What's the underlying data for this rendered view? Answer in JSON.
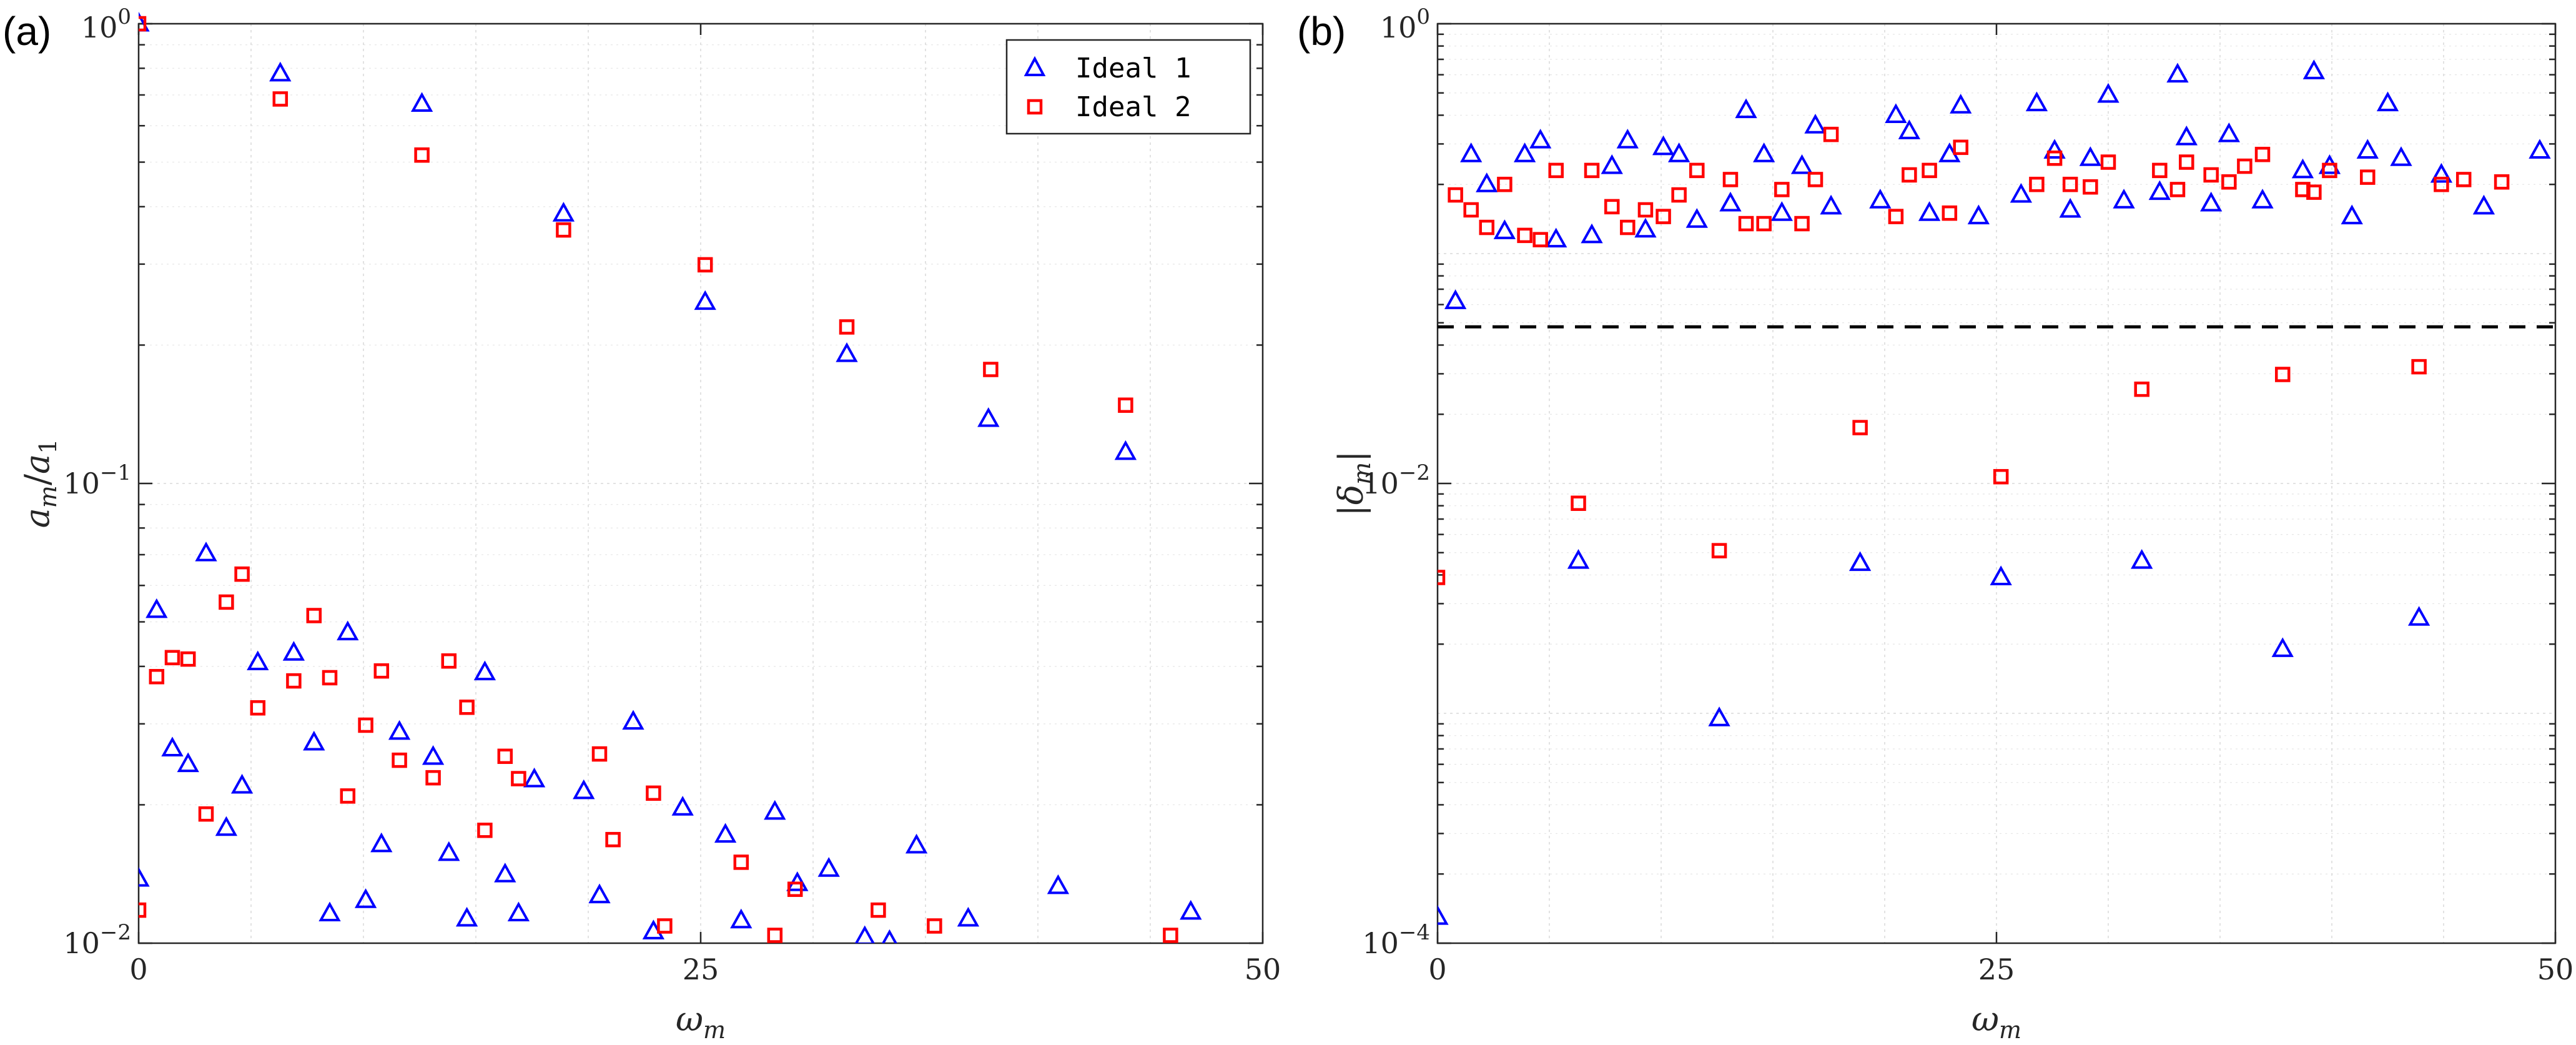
{
  "chart_data": [
    {
      "id": "a",
      "type": "scatter",
      "panel_label": "(a)",
      "xlabel": "ω_m",
      "ylabel": "a_m/a_1",
      "xlim": [
        0,
        50
      ],
      "ylim": [
        0.01,
        1
      ],
      "yscale": "log",
      "x_ticks": [
        0,
        25,
        50
      ],
      "y_ticks": [
        0.01,
        0.1,
        1
      ],
      "y_tick_labels": [
        "10^{-2}",
        "10^{-1}",
        "10^{0}"
      ],
      "legend": {
        "position": "top-right",
        "entries": [
          "Ideal 1",
          "Ideal 2"
        ]
      },
      "series": [
        {
          "name": "Ideal 1",
          "marker": "triangle",
          "color": "#0000ff",
          "points": [
            [
              0,
              1.0
            ],
            [
              0,
              0.0138
            ],
            [
              0.8,
              0.053
            ],
            [
              1.5,
              0.0265
            ],
            [
              2.2,
              0.0245
            ],
            [
              3,
              0.0704
            ],
            [
              3.9,
              0.0178
            ],
            [
              4.6,
              0.022
            ],
            [
              5.3,
              0.0408
            ],
            [
              6.3,
              0.779
            ],
            [
              6.9,
              0.0428
            ],
            [
              7.8,
              0.0273
            ],
            [
              8.5,
              0.0116
            ],
            [
              9.3,
              0.0474
            ],
            [
              10.1,
              0.0124
            ],
            [
              10.8,
              0.0164
            ],
            [
              11.6,
              0.0288
            ],
            [
              12.6,
              0.669
            ],
            [
              13.1,
              0.0254
            ],
            [
              13.8,
              0.0157
            ],
            [
              14.6,
              0.0113
            ],
            [
              15.4,
              0.0388
            ],
            [
              16.3,
              0.0141
            ],
            [
              16.9,
              0.0116
            ],
            [
              17.6,
              0.0227
            ],
            [
              18.9,
              0.386
            ],
            [
              19.8,
              0.0214
            ],
            [
              20.5,
              0.0127
            ],
            [
              22,
              0.0303
            ],
            [
              22.9,
              0.0106
            ],
            [
              24.2,
              0.0197
            ],
            [
              25.2,
              0.248
            ],
            [
              26.1,
              0.0172
            ],
            [
              26.8,
              0.0112
            ],
            [
              28.3,
              0.0193
            ],
            [
              29.3,
              0.0135
            ],
            [
              30.7,
              0.0145
            ],
            [
              31.5,
              0.191
            ],
            [
              32.3,
              0.0103
            ],
            [
              33.4,
              0.0101
            ],
            [
              34.6,
              0.0163
            ],
            [
              36.9,
              0.0113
            ],
            [
              37.8,
              0.138
            ],
            [
              40.9,
              0.0133
            ],
            [
              43.9,
              0.117
            ],
            [
              46.8,
              0.0117
            ]
          ]
        },
        {
          "name": "Ideal 2",
          "marker": "square",
          "color": "#ff0000",
          "points": [
            [
              0,
              1.0
            ],
            [
              0,
              0.0118
            ],
            [
              0.8,
              0.038
            ],
            [
              1.5,
              0.0418
            ],
            [
              2.2,
              0.0415
            ],
            [
              3,
              0.0191
            ],
            [
              3.9,
              0.0552
            ],
            [
              4.6,
              0.0635
            ],
            [
              5.3,
              0.0325
            ],
            [
              6.3,
              0.686
            ],
            [
              6.9,
              0.0372
            ],
            [
              7.8,
              0.0516
            ],
            [
              8.5,
              0.0378
            ],
            [
              9.3,
              0.0209
            ],
            [
              10.1,
              0.0298
            ],
            [
              10.8,
              0.0391
            ],
            [
              11.6,
              0.025
            ],
            [
              12.6,
              0.518
            ],
            [
              13.1,
              0.0229
            ],
            [
              13.8,
              0.0411
            ],
            [
              14.6,
              0.0326
            ],
            [
              15.4,
              0.0176
            ],
            [
              16.3,
              0.0255
            ],
            [
              16.9,
              0.0228
            ],
            [
              18.9,
              0.356
            ],
            [
              20.5,
              0.0258
            ],
            [
              21.1,
              0.0168
            ],
            [
              22.9,
              0.0212
            ],
            [
              23.4,
              0.0109
            ],
            [
              25.2,
              0.299
            ],
            [
              26.8,
              0.015
            ],
            [
              28.3,
              0.0104
            ],
            [
              29.2,
              0.0131
            ],
            [
              31.5,
              0.219
            ],
            [
              32.9,
              0.0118
            ],
            [
              35.4,
              0.0109
            ],
            [
              37.9,
              0.177
            ],
            [
              43.9,
              0.148
            ],
            [
              45.9,
              0.0104
            ]
          ]
        }
      ]
    },
    {
      "id": "b",
      "type": "scatter",
      "panel_label": "(b)",
      "xlabel": "ω_m",
      "ylabel": "|δ_m|",
      "xlim": [
        0,
        50
      ],
      "ylim": [
        0.0001,
        1
      ],
      "yscale": "log",
      "x_ticks": [
        0,
        25,
        50
      ],
      "y_ticks": [
        0.0001,
        0.01,
        1
      ],
      "y_tick_labels": [
        "10^{-4}",
        "10^{-2}",
        "10^{0}"
      ],
      "reference_line": {
        "y": 0.048,
        "style": "dashed",
        "color": "#000000"
      },
      "series": [
        {
          "name": "Ideal 1",
          "marker": "triangle",
          "color": "#0000ff",
          "points": [
            [
              0,
              0.00013
            ],
            [
              0.8,
              0.062
            ],
            [
              1.5,
              0.27
            ],
            [
              2.2,
              0.2
            ],
            [
              3,
              0.125
            ],
            [
              3.9,
              0.27
            ],
            [
              4.6,
              0.31
            ],
            [
              5.3,
              0.115
            ],
            [
              6.3,
              0.0046
            ],
            [
              6.9,
              0.12
            ],
            [
              7.8,
              0.24
            ],
            [
              8.5,
              0.31
            ],
            [
              9.3,
              0.127
            ],
            [
              10.1,
              0.29
            ],
            [
              10.8,
              0.27
            ],
            [
              11.6,
              0.14
            ],
            [
              12.6,
              0.00095
            ],
            [
              13.1,
              0.165
            ],
            [
              13.8,
              0.42
            ],
            [
              14.6,
              0.27
            ],
            [
              15.4,
              0.15
            ],
            [
              16.3,
              0.24
            ],
            [
              16.9,
              0.36
            ],
            [
              17.6,
              0.16
            ],
            [
              18.9,
              0.0045
            ],
            [
              19.8,
              0.17
            ],
            [
              20.5,
              0.4
            ],
            [
              21.1,
              0.34
            ],
            [
              22,
              0.15
            ],
            [
              22.9,
              0.27
            ],
            [
              23.4,
              0.44
            ],
            [
              24.2,
              0.145
            ],
            [
              25.2,
              0.0039
            ],
            [
              26.1,
              0.18
            ],
            [
              26.8,
              0.45
            ],
            [
              27.6,
              0.28
            ],
            [
              28.3,
              0.155
            ],
            [
              29.2,
              0.26
            ],
            [
              30,
              0.49
            ],
            [
              30.7,
              0.17
            ],
            [
              31.5,
              0.0046
            ],
            [
              32.3,
              0.185
            ],
            [
              33.1,
              0.6
            ],
            [
              33.5,
              0.32
            ],
            [
              34.6,
              0.165
            ],
            [
              35.4,
              0.33
            ],
            [
              36.9,
              0.17
            ],
            [
              37.8,
              0.0019
            ],
            [
              38.7,
              0.23
            ],
            [
              39.2,
              0.62
            ],
            [
              39.9,
              0.24
            ],
            [
              40.9,
              0.145
            ],
            [
              41.6,
              0.28
            ],
            [
              42.5,
              0.45
            ],
            [
              43.1,
              0.26
            ],
            [
              43.9,
              0.0026
            ],
            [
              44.9,
              0.22
            ],
            [
              46.8,
              0.16
            ],
            [
              49.3,
              0.28
            ]
          ]
        },
        {
          "name": "Ideal 2",
          "marker": "square",
          "color": "#ff0000",
          "points": [
            [
              0,
              0.0039
            ],
            [
              0.8,
              0.18
            ],
            [
              1.5,
              0.155
            ],
            [
              2.2,
              0.13
            ],
            [
              3,
              0.2
            ],
            [
              3.9,
              0.12
            ],
            [
              4.6,
              0.115
            ],
            [
              5.3,
              0.23
            ],
            [
              6.3,
              0.0082
            ],
            [
              6.9,
              0.23
            ],
            [
              7.8,
              0.16
            ],
            [
              8.5,
              0.13
            ],
            [
              9.3,
              0.155
            ],
            [
              10.1,
              0.145
            ],
            [
              10.8,
              0.18
            ],
            [
              11.6,
              0.23
            ],
            [
              12.6,
              0.0051
            ],
            [
              13.1,
              0.21
            ],
            [
              13.8,
              0.135
            ],
            [
              14.6,
              0.135
            ],
            [
              15.4,
              0.19
            ],
            [
              16.3,
              0.135
            ],
            [
              16.9,
              0.21
            ],
            [
              17.6,
              0.33
            ],
            [
              18.9,
              0.0175
            ],
            [
              20.5,
              0.145
            ],
            [
              21.1,
              0.22
            ],
            [
              22,
              0.23
            ],
            [
              22.9,
              0.15
            ],
            [
              23.4,
              0.29
            ],
            [
              25.2,
              0.0107
            ],
            [
              26.8,
              0.2
            ],
            [
              27.6,
              0.26
            ],
            [
              28.3,
              0.2
            ],
            [
              29.2,
              0.195
            ],
            [
              30,
              0.25
            ],
            [
              31.5,
              0.0257
            ],
            [
              32.3,
              0.23
            ],
            [
              33.1,
              0.19
            ],
            [
              33.5,
              0.25
            ],
            [
              34.6,
              0.22
            ],
            [
              35.4,
              0.205
            ],
            [
              36.1,
              0.24
            ],
            [
              36.9,
              0.27
            ],
            [
              37.8,
              0.0298
            ],
            [
              38.7,
              0.19
            ],
            [
              39.2,
              0.185
            ],
            [
              39.9,
              0.23
            ],
            [
              41.6,
              0.215
            ],
            [
              43.9,
              0.0322
            ],
            [
              44.9,
              0.2
            ],
            [
              45.9,
              0.21
            ],
            [
              47.6,
              0.205
            ]
          ]
        }
      ]
    }
  ]
}
